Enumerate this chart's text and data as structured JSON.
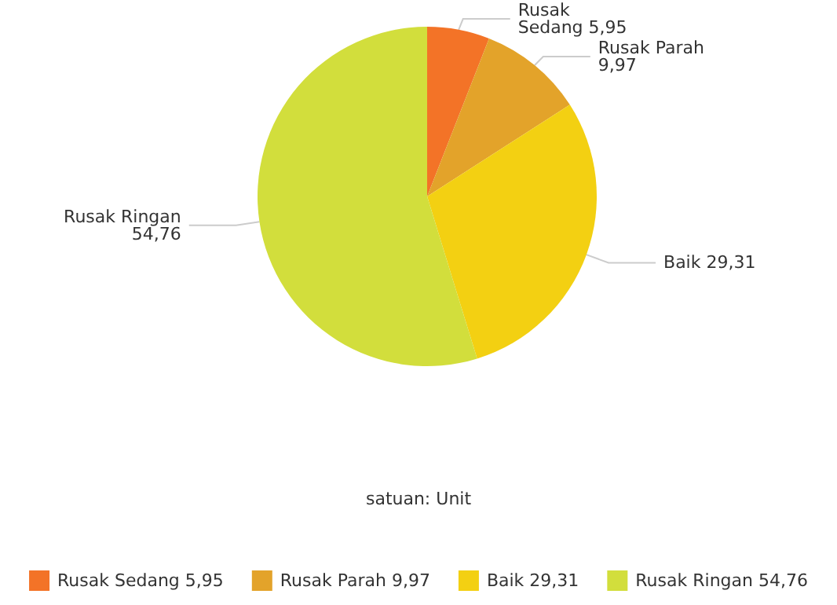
{
  "chart_data": {
    "type": "pie",
    "categories": [
      "Rusak Sedang",
      "Rusak Parah",
      "Baik",
      "Rusak Ringan"
    ],
    "values": [
      5.95,
      9.97,
      29.31,
      54.76
    ],
    "value_labels": [
      "5,95",
      "9,97",
      "29,31",
      "54,76"
    ],
    "colors": [
      "#f37327",
      "#e3a32a",
      "#f3d012",
      "#d2de3c"
    ],
    "legend": "bottom",
    "annotations": [
      "satuan: Unit"
    ]
  }
}
